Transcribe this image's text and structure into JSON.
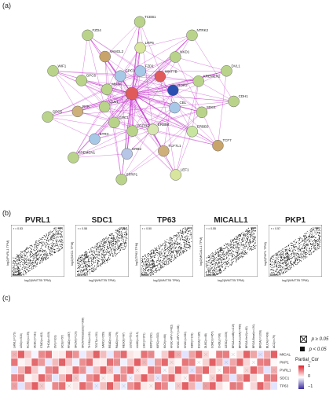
{
  "panel_labels": {
    "a": "(a)",
    "b": "(b)",
    "c": "(c)"
  },
  "network": {
    "center_color": "#e05a5a",
    "edge_color": "#c026c8",
    "nodes": [
      {
        "label": "CDH1",
        "color": "#b9d48a"
      },
      {
        "label": "ERBB3",
        "color": "#c8e6a0"
      },
      {
        "label": "ERBB4",
        "color": "#d7e6b0"
      },
      {
        "label": "TCF7",
        "color": "#c9a46a"
      },
      {
        "label": "TCF7L1",
        "color": "#cdb07a"
      },
      {
        "label": "TCF7L2",
        "color": "#b9d48a"
      },
      {
        "label": "LEF1",
        "color": "#d8e59c"
      },
      {
        "label": "GRB2",
        "color": "#b7c6e6"
      },
      {
        "label": "GPC1",
        "color": "#b9d48a"
      },
      {
        "label": "SFRP1",
        "color": "#b9d48a"
      },
      {
        "label": "BTRC",
        "color": "#a8c8e8"
      },
      {
        "label": "CUL1",
        "color": "#b9d48a"
      },
      {
        "label": "KREMEN1",
        "color": "#b9d48a"
      },
      {
        "label": "RYK",
        "color": "#cdb07a"
      },
      {
        "label": "MUSK",
        "color": "#b9d48a"
      },
      {
        "label": "GPC5",
        "color": "#b9d48a"
      },
      {
        "label": "GPC6",
        "color": "#b9d48a"
      },
      {
        "label": "GPC3",
        "color": "#a8c8e8"
      },
      {
        "label": "WIF1",
        "color": "#b9d48a"
      },
      {
        "label": "VANGL2",
        "color": "#c9a46a"
      },
      {
        "label": "FZD1",
        "color": "#a8c8e8"
      },
      {
        "label": "FZD4",
        "color": "#b9d48a"
      },
      {
        "label": "LRP6",
        "color": "#d8e59c"
      },
      {
        "label": "WNT7B",
        "color": "#e05a5a"
      },
      {
        "label": "TCEB1",
        "color": "#b9d48a"
      },
      {
        "label": "NKD1",
        "color": "#b9d48a"
      },
      {
        "label": "ROR2",
        "color": "#2a4fb0"
      },
      {
        "label": "NTRK2",
        "color": "#b9d48a"
      },
      {
        "label": "KREMEN2",
        "color": "#b9d48a"
      },
      {
        "label": "CBL",
        "color": "#a8c8e8"
      },
      {
        "label": "DVL1",
        "color": "#b9d48a"
      },
      {
        "label": "SDC1",
        "color": "#b9d48a"
      }
    ]
  },
  "scatter_panels": [
    {
      "title": "PVRL1",
      "legend": "r = 0.53"
    },
    {
      "title": "SDC1",
      "legend": "r = 0.58"
    },
    {
      "title": "TP63",
      "legend": "r = 0.50"
    },
    {
      "title": "MICALL1",
      "legend": "r = 0.55"
    },
    {
      "title": "PKP1",
      "legend": "r = 0.57"
    }
  ],
  "scatter_axis": {
    "x": "log2(WNT7B TPM)",
    "y_template": "log2(GENE TPM)"
  },
  "heatmap": {
    "rows": [
      "MICALL1",
      "PKP1",
      "PVRL1",
      "SDC1",
      "TP63"
    ],
    "columns": [
      "LAML(n=173)",
      "LGG(n=516)",
      "PCPG(n=179)",
      "UCEC(n=181)",
      "STAD(n=415)",
      "THCA(n=509)",
      "OV(n=303)",
      "UCS(n=57)",
      "PRAD(n=497)",
      "SKCM(n=103)",
      "SKCM-Metastasis(n=368)",
      "THYM(n=120)",
      "TGCT(n=150)",
      "SARC(n=259)",
      "READ(n=166)",
      "PAAD(n=179)",
      "MESO(n=87)",
      "LUSC(n=501)",
      "LUAD(n=515)",
      "LIHC(n=371)",
      "KIRP(n=290)",
      "KIRC(n=533)",
      "KICH(n=66)",
      "HNSC-HPV-(n=422)",
      "HNSC-HPV+(n=98)",
      "HNSC(n=520)",
      "GBM(n=153)",
      "ESCA(n=185)",
      "DLBC(n=48)",
      "COAD(n=457)",
      "CHOL(n=36)",
      "CESC(n=306)",
      "BRCA-LumB(n=219)",
      "BRCA-LumA(n=499)",
      "BRCA-Her2(n=82)",
      "BRCA-Basal(n=191)",
      "BRCA(n=1093)",
      "BLCA(n=408)",
      "ACC(n=79)"
    ],
    "significance": {
      "ns": "p ≥ 0.05",
      "sig": "p < 0.05"
    },
    "colorbar": {
      "title": "Partial_Cor",
      "ticks": [
        "1",
        "0",
        "−1"
      ],
      "high": "#e0202a",
      "mid": "#ffffff",
      "low": "#3a2aa0"
    }
  }
}
